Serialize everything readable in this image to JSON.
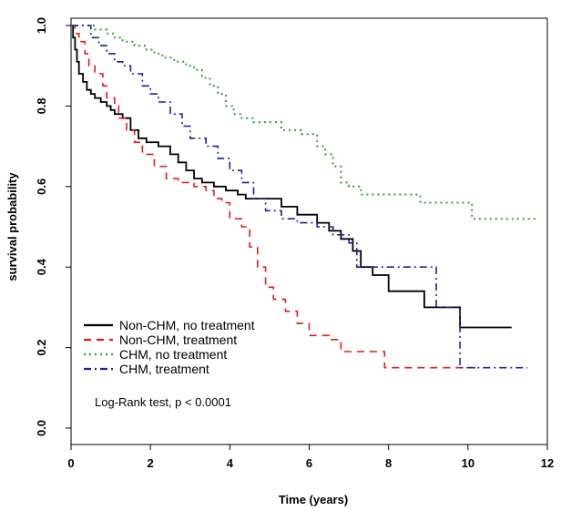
{
  "chart_data": {
    "type": "line",
    "subtype": "step",
    "xlabel": "Time (years)",
    "ylabel": "survival probability",
    "xlim": [
      0,
      12
    ],
    "ylim": [
      0,
      1
    ],
    "x_ticks": [
      0,
      2,
      4,
      6,
      8,
      10,
      12
    ],
    "y_ticks": [
      0.0,
      0.2,
      0.4,
      0.6,
      0.8,
      1.0
    ],
    "x_tick_labels": [
      "0",
      "2",
      "4",
      "6",
      "8",
      "10",
      "12"
    ],
    "y_tick_labels": [
      "0.0",
      "0.2",
      "0.4",
      "0.6",
      "0.8",
      "1.0"
    ],
    "grid": false,
    "legend_position": "bottom-left",
    "annotation": "Log-Rank test, p < 0.0001",
    "series": [
      {
        "name": "Non-CHM, no treatment",
        "color": "#000000",
        "dash": "solid",
        "points": [
          [
            0,
            1.0
          ],
          [
            0.05,
            0.97
          ],
          [
            0.1,
            0.94
          ],
          [
            0.15,
            0.91
          ],
          [
            0.2,
            0.88
          ],
          [
            0.3,
            0.86
          ],
          [
            0.4,
            0.84
          ],
          [
            0.5,
            0.83
          ],
          [
            0.6,
            0.82
          ],
          [
            0.75,
            0.81
          ],
          [
            0.9,
            0.8
          ],
          [
            1.0,
            0.79
          ],
          [
            1.1,
            0.78
          ],
          [
            1.3,
            0.77
          ],
          [
            1.5,
            0.74
          ],
          [
            1.7,
            0.72
          ],
          [
            1.9,
            0.71
          ],
          [
            2.2,
            0.7
          ],
          [
            2.5,
            0.68
          ],
          [
            2.7,
            0.66
          ],
          [
            2.9,
            0.64
          ],
          [
            3.1,
            0.62
          ],
          [
            3.3,
            0.61
          ],
          [
            3.6,
            0.6
          ],
          [
            3.9,
            0.59
          ],
          [
            4.2,
            0.58
          ],
          [
            4.4,
            0.57
          ],
          [
            5.0,
            0.57
          ],
          [
            5.3,
            0.55
          ],
          [
            5.7,
            0.53
          ],
          [
            6.2,
            0.51
          ],
          [
            6.5,
            0.49
          ],
          [
            6.8,
            0.47
          ],
          [
            7.1,
            0.44
          ],
          [
            7.3,
            0.4
          ],
          [
            7.6,
            0.38
          ],
          [
            8.0,
            0.34
          ],
          [
            8.9,
            0.3
          ],
          [
            9.8,
            0.25
          ],
          [
            11.1,
            0.25
          ]
        ]
      },
      {
        "name": "Non-CHM, treatment",
        "color": "#e31a1c",
        "dash": "dashed",
        "points": [
          [
            0,
            1.0
          ],
          [
            0.1,
            0.98
          ],
          [
            0.2,
            0.96
          ],
          [
            0.35,
            0.93
          ],
          [
            0.45,
            0.9
          ],
          [
            0.6,
            0.88
          ],
          [
            0.8,
            0.85
          ],
          [
            0.9,
            0.82
          ],
          [
            1.1,
            0.8
          ],
          [
            1.2,
            0.77
          ],
          [
            1.4,
            0.74
          ],
          [
            1.6,
            0.71
          ],
          [
            1.8,
            0.68
          ],
          [
            2.1,
            0.65
          ],
          [
            2.4,
            0.62
          ],
          [
            2.7,
            0.61
          ],
          [
            3.1,
            0.6
          ],
          [
            3.4,
            0.59
          ],
          [
            3.6,
            0.57
          ],
          [
            3.8,
            0.56
          ],
          [
            4.0,
            0.52
          ],
          [
            4.3,
            0.5
          ],
          [
            4.5,
            0.45
          ],
          [
            4.7,
            0.4
          ],
          [
            4.9,
            0.35
          ],
          [
            5.1,
            0.32
          ],
          [
            5.4,
            0.29
          ],
          [
            5.7,
            0.26
          ],
          [
            6.0,
            0.23
          ],
          [
            6.5,
            0.22
          ],
          [
            6.8,
            0.19
          ],
          [
            7.4,
            0.19
          ],
          [
            7.9,
            0.15
          ],
          [
            10.3,
            0.15
          ]
        ]
      },
      {
        "name": "CHM, no treatment",
        "color": "#33a02c",
        "dash": "dotted",
        "points": [
          [
            0,
            1.0
          ],
          [
            0.4,
            1.0
          ],
          [
            0.6,
            0.99
          ],
          [
            0.9,
            0.98
          ],
          [
            1.1,
            0.97
          ],
          [
            1.3,
            0.96
          ],
          [
            1.6,
            0.95
          ],
          [
            1.9,
            0.94
          ],
          [
            2.1,
            0.93
          ],
          [
            2.3,
            0.92
          ],
          [
            2.6,
            0.91
          ],
          [
            2.9,
            0.9
          ],
          [
            3.1,
            0.89
          ],
          [
            3.3,
            0.87
          ],
          [
            3.5,
            0.85
          ],
          [
            3.7,
            0.83
          ],
          [
            3.9,
            0.8
          ],
          [
            4.1,
            0.78
          ],
          [
            4.3,
            0.77
          ],
          [
            4.6,
            0.76
          ],
          [
            5.0,
            0.76
          ],
          [
            5.3,
            0.74
          ],
          [
            5.8,
            0.73
          ],
          [
            6.2,
            0.7
          ],
          [
            6.4,
            0.68
          ],
          [
            6.6,
            0.65
          ],
          [
            6.8,
            0.61
          ],
          [
            7.0,
            0.6
          ],
          [
            7.3,
            0.58
          ],
          [
            8.8,
            0.56
          ],
          [
            10.1,
            0.52
          ],
          [
            11.7,
            0.52
          ]
        ]
      },
      {
        "name": "CHM, treatment",
        "color": "#1f1f99",
        "dash": "dashdot",
        "points": [
          [
            0,
            1.0
          ],
          [
            0.3,
            1.0
          ],
          [
            0.5,
            0.97
          ],
          [
            0.7,
            0.95
          ],
          [
            0.9,
            0.93
          ],
          [
            1.1,
            0.91
          ],
          [
            1.3,
            0.9
          ],
          [
            1.5,
            0.88
          ],
          [
            1.8,
            0.85
          ],
          [
            2.0,
            0.83
          ],
          [
            2.2,
            0.81
          ],
          [
            2.5,
            0.78
          ],
          [
            2.8,
            0.75
          ],
          [
            3.0,
            0.72
          ],
          [
            3.4,
            0.7
          ],
          [
            3.7,
            0.67
          ],
          [
            4.0,
            0.64
          ],
          [
            4.3,
            0.61
          ],
          [
            4.6,
            0.57
          ],
          [
            4.9,
            0.54
          ],
          [
            5.3,
            0.52
          ],
          [
            5.7,
            0.51
          ],
          [
            6.2,
            0.5
          ],
          [
            6.6,
            0.48
          ],
          [
            7.0,
            0.46
          ],
          [
            7.2,
            0.4
          ],
          [
            9.2,
            0.3
          ],
          [
            9.8,
            0.15
          ],
          [
            11.5,
            0.15
          ]
        ]
      }
    ]
  }
}
